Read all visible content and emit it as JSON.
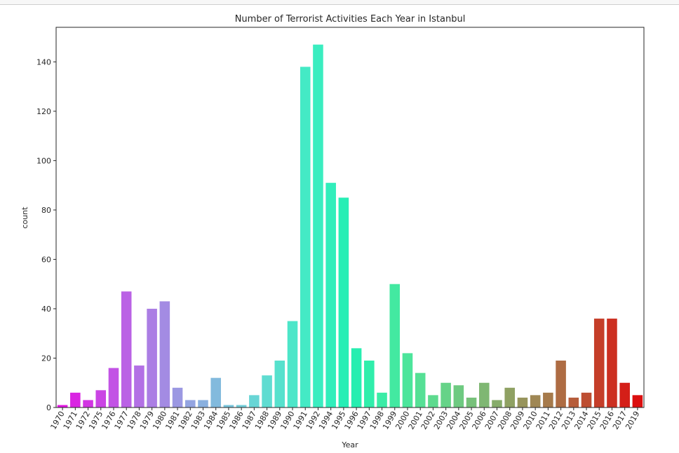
{
  "chart_data": {
    "type": "bar",
    "title": "Number of Terrorist Activities Each Year in Istanbul",
    "xlabel": "Year",
    "ylabel": "count",
    "ylim": [
      0,
      154
    ],
    "yticks": [
      0,
      20,
      40,
      60,
      80,
      100,
      120,
      140
    ],
    "grid": false,
    "legend": "none",
    "palette": "rainbow",
    "categories": [
      "1970",
      "1971",
      "1972",
      "1975",
      "1976",
      "1977",
      "1978",
      "1979",
      "1980",
      "1981",
      "1982",
      "1983",
      "1984",
      "1985",
      "1986",
      "1987",
      "1988",
      "1989",
      "1990",
      "1991",
      "1992",
      "1994",
      "1995",
      "1996",
      "1997",
      "1998",
      "1999",
      "2000",
      "2001",
      "2002",
      "2003",
      "2004",
      "2005",
      "2006",
      "2007",
      "2008",
      "2009",
      "2010",
      "2011",
      "2012",
      "2013",
      "2014",
      "2015",
      "2016",
      "2017",
      "2019"
    ],
    "values": [
      1,
      6,
      3,
      7,
      16,
      47,
      17,
      40,
      43,
      8,
      3,
      3,
      12,
      1,
      1,
      5,
      13,
      19,
      35,
      138,
      147,
      91,
      85,
      24,
      19,
      6,
      50,
      22,
      14,
      5,
      10,
      9,
      4,
      10,
      3,
      8,
      4,
      5,
      6,
      19,
      4,
      6,
      36,
      36,
      10,
      5
    ]
  }
}
